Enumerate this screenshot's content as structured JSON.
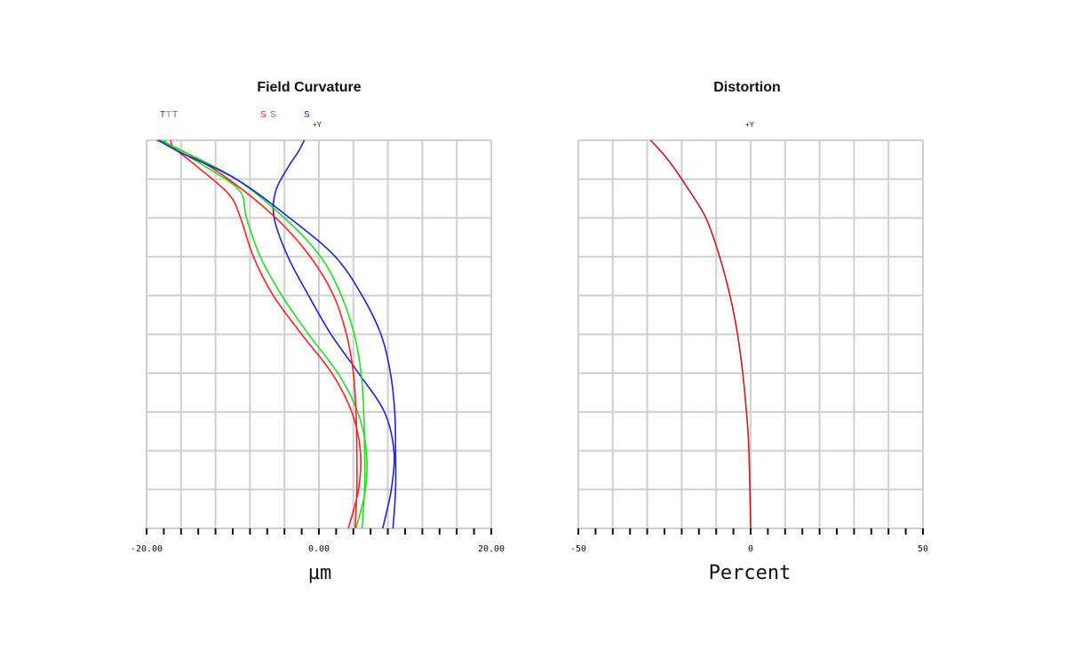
{
  "chart_data": [
    {
      "type": "line",
      "title": "Field Curvature",
      "xlabel": "µm",
      "ylabel": "",
      "xlim": [
        -20,
        20
      ],
      "ylim": [
        0,
        1
      ],
      "xticks": [
        "-20.00",
        "0.00",
        "20.00"
      ],
      "field_label": "+Y",
      "legend": [
        {
          "text": "T",
          "color": "#2020ff"
        },
        {
          "text": "T",
          "color": "#20c020"
        },
        {
          "text": "T",
          "color": "#ff2020"
        },
        {
          "text": "S",
          "color": "#ff2020"
        },
        {
          "text": "S",
          "color": "#20c020"
        },
        {
          "text": "S",
          "color": "#2020ff"
        }
      ],
      "series": [
        {
          "kind": "T",
          "color": "#ff2020",
          "points": [
            [
              3.4,
              0
            ],
            [
              4.6,
              0.1
            ],
            [
              4.8,
              0.2
            ],
            [
              3.8,
              0.3
            ],
            [
              1.5,
              0.4
            ],
            [
              -2.0,
              0.5
            ],
            [
              -5.3,
              0.6
            ],
            [
              -7.6,
              0.7
            ],
            [
              -9.1,
              0.8
            ],
            [
              -10.4,
              0.86
            ],
            [
              -14.0,
              0.93
            ],
            [
              -16.8,
              0.98
            ],
            [
              -17.2,
              1.0
            ]
          ]
        },
        {
          "kind": "T",
          "color": "#20e020",
          "points": [
            [
              4.3,
              0
            ],
            [
              5.4,
              0.1
            ],
            [
              5.5,
              0.2
            ],
            [
              4.5,
              0.3
            ],
            [
              2.2,
              0.4
            ],
            [
              -1.2,
              0.5
            ],
            [
              -4.3,
              0.6
            ],
            [
              -6.8,
              0.7
            ],
            [
              -8.4,
              0.8
            ],
            [
              -9.2,
              0.87
            ],
            [
              -13.0,
              0.93
            ],
            [
              -16.8,
              0.98
            ],
            [
              -18.0,
              1.0
            ]
          ]
        },
        {
          "kind": "T",
          "color": "#2020e0",
          "points": [
            [
              7.4,
              0
            ],
            [
              8.4,
              0.1
            ],
            [
              8.7,
              0.2
            ],
            [
              7.6,
              0.3
            ],
            [
              4.6,
              0.4
            ],
            [
              1.4,
              0.5
            ],
            [
              -1.2,
              0.6
            ],
            [
              -3.6,
              0.7
            ],
            [
              -5.2,
              0.8
            ],
            [
              -5.0,
              0.87
            ],
            [
              -3.6,
              0.93
            ],
            [
              -2.4,
              0.97
            ],
            [
              -1.7,
              1.0
            ]
          ]
        },
        {
          "kind": "S",
          "color": "#ff2020",
          "points": [
            [
              4.2,
              0
            ],
            [
              4.4,
              0.1
            ],
            [
              4.4,
              0.2
            ],
            [
              4.3,
              0.3
            ],
            [
              4.0,
              0.4
            ],
            [
              3.2,
              0.5
            ],
            [
              1.7,
              0.6
            ],
            [
              -1.0,
              0.7
            ],
            [
              -5.0,
              0.8
            ],
            [
              -10.5,
              0.9
            ],
            [
              -15.6,
              0.97
            ],
            [
              -18.8,
              1.0
            ]
          ]
        },
        {
          "kind": "S",
          "color": "#20e020",
          "points": [
            [
              5.0,
              0
            ],
            [
              5.3,
              0.1
            ],
            [
              5.3,
              0.2
            ],
            [
              5.2,
              0.3
            ],
            [
              4.9,
              0.4
            ],
            [
              4.1,
              0.5
            ],
            [
              2.6,
              0.6
            ],
            [
              0.2,
              0.7
            ],
            [
              -4.0,
              0.8
            ],
            [
              -9.6,
              0.9
            ],
            [
              -15.6,
              0.97
            ],
            [
              -18.4,
              1.0
            ]
          ]
        },
        {
          "kind": "S",
          "color": "#2020e0",
          "points": [
            [
              8.6,
              0
            ],
            [
              8.9,
              0.1
            ],
            [
              8.9,
              0.2
            ],
            [
              8.8,
              0.3
            ],
            [
              8.3,
              0.4
            ],
            [
              7.2,
              0.5
            ],
            [
              5.0,
              0.6
            ],
            [
              1.9,
              0.7
            ],
            [
              -3.4,
              0.8
            ],
            [
              -9.6,
              0.9
            ],
            [
              -16.2,
              0.97
            ],
            [
              -18.6,
              1.0
            ]
          ]
        }
      ]
    },
    {
      "type": "line",
      "title": "Distortion",
      "xlabel": "Percent",
      "ylabel": "",
      "xlim": [
        -50,
        50
      ],
      "ylim": [
        0,
        1
      ],
      "xticks": [
        "-50",
        "0",
        "50"
      ],
      "field_label": "+Y",
      "series": [
        {
          "kind": "distortion",
          "color": "#cc1a1a",
          "points": [
            [
              0,
              0
            ],
            [
              -0.5,
              0.2
            ],
            [
              -1.2,
              0.3
            ],
            [
              -2.3,
              0.4
            ],
            [
              -3.8,
              0.5
            ],
            [
              -6.0,
              0.6
            ],
            [
              -9.0,
              0.7
            ],
            [
              -13.0,
              0.8
            ],
            [
              -18.5,
              0.88
            ],
            [
              -24.0,
              0.95
            ],
            [
              -29.0,
              1.0
            ]
          ]
        }
      ]
    }
  ]
}
